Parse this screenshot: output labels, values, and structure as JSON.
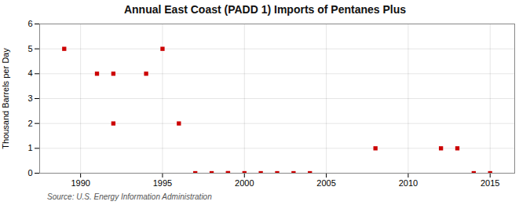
{
  "chart_data": {
    "type": "scatter",
    "title": "Annual East Coast (PADD 1) Imports of Pentanes Plus",
    "ylabel": "Thousand Barrels per Day",
    "annotations": [
      "Source: U.S. Energy Information Administration"
    ],
    "x": [
      1989,
      1991,
      1992,
      1992,
      1994,
      1995,
      1996,
      1997,
      1998,
      1999,
      1999,
      2000,
      2001,
      2002,
      2003,
      2004,
      2008,
      2012,
      2013,
      2014,
      2015
    ],
    "values": [
      5,
      4,
      4,
      2,
      4,
      5,
      2,
      0,
      0,
      0,
      0,
      0,
      0,
      0,
      0,
      0,
      1,
      1,
      1,
      0,
      0
    ],
    "color": "#cc0000",
    "marker": "square",
    "xlim": [
      1987.5,
      2016.5
    ],
    "ylim": [
      0,
      6
    ],
    "xticks": [
      1990,
      1995,
      2000,
      2005,
      2010,
      2015
    ],
    "yticks": [
      0,
      1,
      2,
      3,
      4,
      5,
      6
    ],
    "grid": true
  }
}
